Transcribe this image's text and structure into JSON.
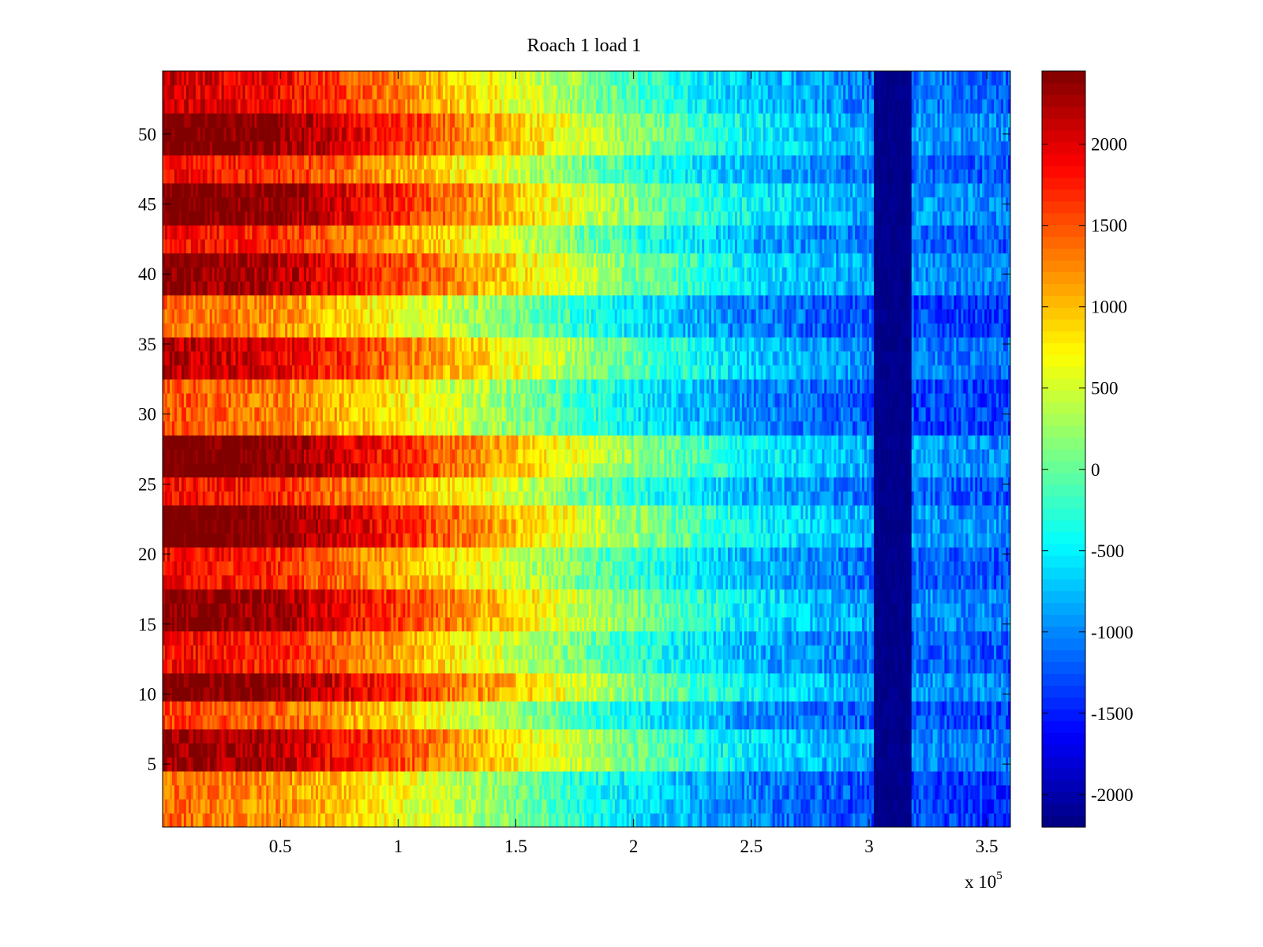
{
  "chart_data": {
    "type": "heatmap",
    "title": "Roach 1 load 1",
    "xlabel": "",
    "ylabel": "",
    "x_multiplier": {
      "prefix": "x 10",
      "exponent": "5"
    },
    "xlim": [
      0,
      3.6
    ],
    "ylim": [
      0.5,
      54.5
    ],
    "x_ticks": [
      {
        "value": 0.5,
        "label": "0.5"
      },
      {
        "value": 1,
        "label": "1"
      },
      {
        "value": 1.5,
        "label": "1.5"
      },
      {
        "value": 2,
        "label": "2"
      },
      {
        "value": 2.5,
        "label": "2.5"
      },
      {
        "value": 3,
        "label": "3"
      },
      {
        "value": 3.5,
        "label": "3.5"
      }
    ],
    "y_ticks": [
      {
        "value": 5,
        "label": "5"
      },
      {
        "value": 10,
        "label": "10"
      },
      {
        "value": 15,
        "label": "15"
      },
      {
        "value": 20,
        "label": "20"
      },
      {
        "value": 25,
        "label": "25"
      },
      {
        "value": 30,
        "label": "30"
      },
      {
        "value": 35,
        "label": "35"
      },
      {
        "value": 40,
        "label": "40"
      },
      {
        "value": 45,
        "label": "45"
      },
      {
        "value": 50,
        "label": "50"
      }
    ],
    "rows": 54,
    "colormap": "jet",
    "colorbar": {
      "clim": [
        -2200,
        2450
      ],
      "ticks": [
        {
          "value": 2000,
          "label": "2000"
        },
        {
          "value": 1500,
          "label": "1500"
        },
        {
          "value": 1000,
          "label": "1000"
        },
        {
          "value": 500,
          "label": "500"
        },
        {
          "value": 0,
          "label": "0"
        },
        {
          "value": -500,
          "label": "-500"
        },
        {
          "value": -1000,
          "label": "-1000"
        },
        {
          "value": -1500,
          "label": "-1500"
        },
        {
          "value": -2000,
          "label": "-2000"
        }
      ]
    },
    "trend": [
      {
        "x": 0.0,
        "value": 1900
      },
      {
        "x": 0.5,
        "value": 1700
      },
      {
        "x": 1.0,
        "value": 1100
      },
      {
        "x": 1.5,
        "value": 450
      },
      {
        "x": 2.0,
        "value": -250
      },
      {
        "x": 2.5,
        "value": -800
      },
      {
        "x": 3.0,
        "value": -1100
      },
      {
        "x": 3.6,
        "value": -1250
      }
    ],
    "low_band": {
      "x_start": 3.02,
      "x_end": 3.18,
      "value": -2150
    },
    "row_groups": [
      {
        "rows": [
          1,
          4
        ],
        "offset": -500
      },
      {
        "rows": [
          5,
          7
        ],
        "offset": 500
      },
      {
        "rows": [
          8,
          9
        ],
        "offset": -300
      },
      {
        "rows": [
          10,
          11
        ],
        "offset": 700
      },
      {
        "rows": [
          12,
          14
        ],
        "offset": 0
      },
      {
        "rows": [
          15,
          17
        ],
        "offset": 600
      },
      {
        "rows": [
          18,
          20
        ],
        "offset": 0
      },
      {
        "rows": [
          21,
          23
        ],
        "offset": 750
      },
      {
        "rows": [
          24,
          25
        ],
        "offset": 0
      },
      {
        "rows": [
          26,
          28
        ],
        "offset": 750
      },
      {
        "rows": [
          29,
          32
        ],
        "offset": -400
      },
      {
        "rows": [
          33,
          35
        ],
        "offset": 300
      },
      {
        "rows": [
          36,
          38
        ],
        "offset": -500
      },
      {
        "rows": [
          39,
          41
        ],
        "offset": 550
      },
      {
        "rows": [
          42,
          43
        ],
        "offset": 0
      },
      {
        "rows": [
          44,
          46
        ],
        "offset": 700
      },
      {
        "rows": [
          47,
          48
        ],
        "offset": 0
      },
      {
        "rows": [
          49,
          51
        ],
        "offset": 700
      },
      {
        "rows": [
          52,
          54
        ],
        "offset": 200
      }
    ],
    "grid": false
  }
}
